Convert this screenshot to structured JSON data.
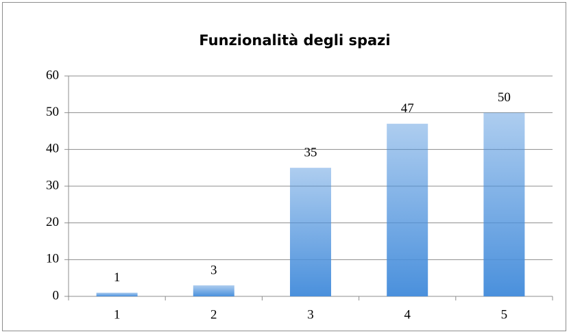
{
  "chart_data": {
    "type": "bar",
    "title": "Funzionalità degli spazi",
    "categories": [
      "1",
      "2",
      "3",
      "4",
      "5"
    ],
    "values": [
      1,
      3,
      35,
      47,
      50
    ],
    "color": "#4a90dc",
    "ylim": [
      0,
      60
    ],
    "yticks": [
      0,
      10,
      20,
      30,
      40,
      50,
      60
    ],
    "grid": true
  }
}
